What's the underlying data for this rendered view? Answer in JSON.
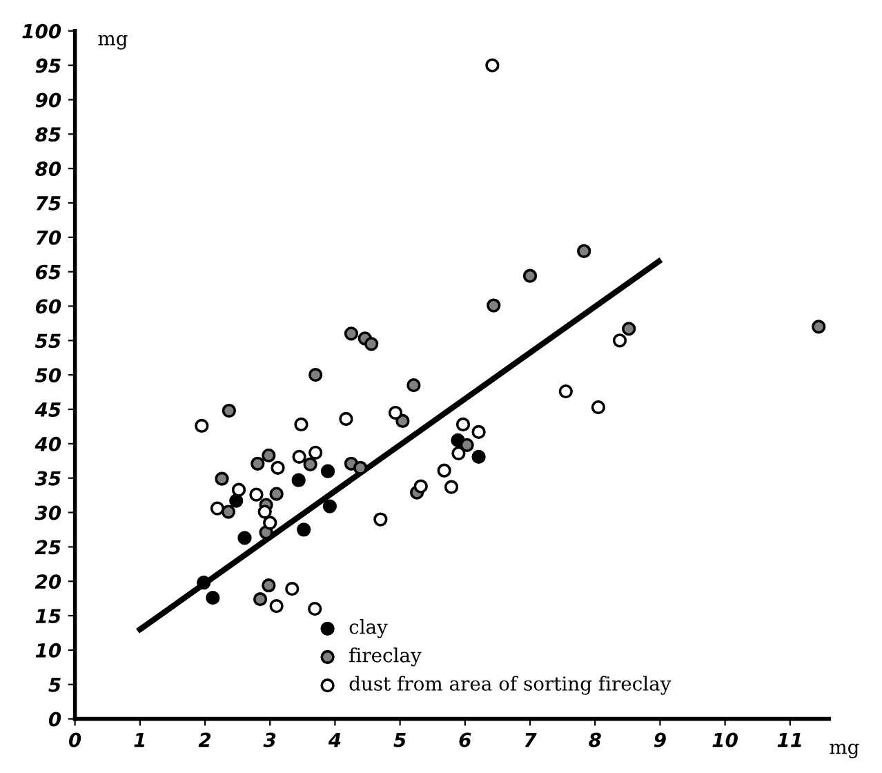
{
  "chart_data": {
    "type": "scatter",
    "xlabel": "mg",
    "ylabel": "mg",
    "xlim": [
      0,
      11.6
    ],
    "ylim": [
      0,
      100
    ],
    "xticks": [
      0,
      1,
      2,
      3,
      4,
      5,
      6,
      7,
      8,
      9,
      10,
      11
    ],
    "yticks": [
      0,
      5,
      10,
      15,
      20,
      25,
      30,
      35,
      40,
      45,
      50,
      55,
      60,
      65,
      70,
      75,
      80,
      85,
      90,
      95,
      100
    ],
    "grid": false,
    "legend": "bottom",
    "series": [
      {
        "name": "clay",
        "color": "#000000",
        "marker": "circle",
        "x": [
          3.44,
          2.48,
          3.89,
          3.92,
          2.61,
          3.52,
          1.98,
          2.12,
          5.89,
          6.21
        ],
        "values": [
          34.7,
          31.7,
          36.0,
          30.9,
          26.3,
          27.5,
          19.8,
          17.6,
          40.5,
          38.1
        ]
      },
      {
        "name": "fireclay",
        "color": "#808080",
        "marker": "circle",
        "x": [
          2.37,
          4.25,
          4.46,
          4.56,
          3.7,
          5.21,
          5.04,
          2.26,
          2.81,
          2.98,
          3.62,
          4.25,
          4.39,
          2.36,
          3.1,
          2.94,
          2.94,
          2.98,
          2.85,
          7.83,
          7.0,
          6.44,
          8.52,
          6.03,
          5.26,
          11.44
        ],
        "values": [
          44.8,
          56.0,
          55.3,
          54.5,
          50.0,
          48.5,
          43.3,
          34.9,
          37.1,
          38.3,
          37.0,
          37.1,
          36.5,
          30.1,
          32.7,
          31.1,
          27.1,
          19.4,
          17.4,
          68.0,
          64.4,
          60.1,
          56.7,
          39.8,
          32.9,
          57.0
        ]
      },
      {
        "name": "dust from area of sorting fireclay",
        "color": "#ffffff",
        "marker": "circle",
        "x": [
          1.95,
          3.48,
          4.17,
          4.93,
          3.12,
          3.45,
          3.7,
          2.52,
          2.19,
          2.79,
          2.92,
          3.0,
          3.1,
          3.34,
          3.69,
          4.7,
          8.38,
          7.55,
          8.05,
          5.97,
          6.21,
          5.9,
          5.68,
          5.32,
          5.79,
          6.42
        ],
        "values": [
          42.6,
          42.8,
          43.6,
          44.5,
          36.5,
          38.1,
          38.7,
          33.3,
          30.6,
          32.6,
          30.1,
          28.5,
          16.4,
          18.9,
          16.0,
          29.0,
          55.0,
          47.6,
          45.3,
          42.8,
          41.7,
          38.6,
          36.1,
          33.8,
          33.7,
          95.0
        ]
      },
      {
        "type": "line",
        "color": "#000000",
        "marker": "none",
        "x": [
          1,
          8.98
        ],
        "values": [
          13.0,
          66.5
        ]
      }
    ]
  }
}
